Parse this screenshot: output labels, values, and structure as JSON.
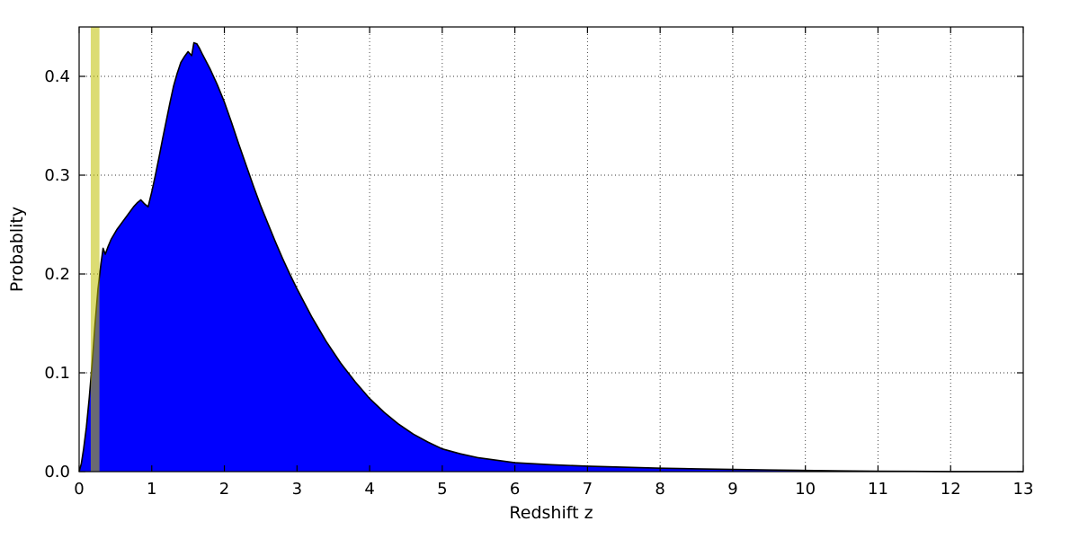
{
  "chart_data": {
    "type": "area",
    "title": "",
    "xlabel": "Redshift  z",
    "ylabel": "Probablity",
    "xlim": [
      0,
      13
    ],
    "ylim": [
      0,
      0.45
    ],
    "xticks": [
      0,
      1,
      2,
      3,
      4,
      5,
      6,
      7,
      8,
      9,
      10,
      11,
      12,
      13
    ],
    "xtick_labels": [
      "0",
      "1",
      "2",
      "3",
      "4",
      "5",
      "6",
      "7",
      "8",
      "9",
      "10",
      "11",
      "12",
      "13"
    ],
    "yticks": [
      0.0,
      0.1,
      0.2,
      0.3,
      0.4
    ],
    "ytick_labels": [
      "0.0",
      "0.1",
      "0.2",
      "0.3",
      "0.4"
    ],
    "grid": "dotted",
    "legend": "none",
    "background_color": "#ffffff",
    "grid_color": "#333333",
    "series": [
      {
        "name": "redshift-probability-density",
        "fill_color": "#0000ff",
        "line_color": "#000000",
        "x": [
          0.0,
          0.03,
          0.06,
          0.1,
          0.14,
          0.18,
          0.22,
          0.26,
          0.3,
          0.33,
          0.36,
          0.4,
          0.44,
          0.48,
          0.52,
          0.56,
          0.6,
          0.65,
          0.7,
          0.75,
          0.8,
          0.85,
          0.9,
          0.95,
          1.0,
          1.05,
          1.1,
          1.15,
          1.2,
          1.25,
          1.3,
          1.35,
          1.4,
          1.45,
          1.5,
          1.55,
          1.58,
          1.62,
          1.66,
          1.7,
          1.8,
          1.9,
          2.0,
          2.1,
          2.2,
          2.3,
          2.4,
          2.5,
          2.6,
          2.7,
          2.8,
          2.9,
          3.0,
          3.2,
          3.4,
          3.6,
          3.8,
          4.0,
          4.2,
          4.4,
          4.6,
          4.8,
          5.0,
          5.25,
          5.5,
          6.0,
          6.5,
          7.0,
          7.5,
          8.0,
          8.5,
          9.0,
          9.5,
          10.0,
          10.5,
          11.0,
          12.0,
          13.0
        ],
        "y": [
          0.0,
          0.008,
          0.022,
          0.045,
          0.075,
          0.11,
          0.15,
          0.185,
          0.21,
          0.226,
          0.22,
          0.228,
          0.235,
          0.24,
          0.245,
          0.249,
          0.253,
          0.258,
          0.263,
          0.268,
          0.272,
          0.275,
          0.271,
          0.268,
          0.283,
          0.3,
          0.318,
          0.337,
          0.355,
          0.373,
          0.39,
          0.403,
          0.414,
          0.42,
          0.425,
          0.421,
          0.434,
          0.433,
          0.428,
          0.422,
          0.408,
          0.392,
          0.374,
          0.353,
          0.331,
          0.31,
          0.289,
          0.269,
          0.251,
          0.233,
          0.216,
          0.2,
          0.185,
          0.157,
          0.132,
          0.11,
          0.091,
          0.074,
          0.06,
          0.048,
          0.038,
          0.03,
          0.023,
          0.018,
          0.014,
          0.009,
          0.007,
          0.0055,
          0.0045,
          0.0035,
          0.0028,
          0.0022,
          0.0017,
          0.0012,
          0.0007,
          0.0004,
          0.0001,
          0.0
        ]
      }
    ],
    "marker_band": {
      "name": "vertical-marker-band",
      "x_start": 0.16,
      "x_end": 0.28,
      "color": "#bfbf00",
      "opacity": 0.55
    }
  }
}
